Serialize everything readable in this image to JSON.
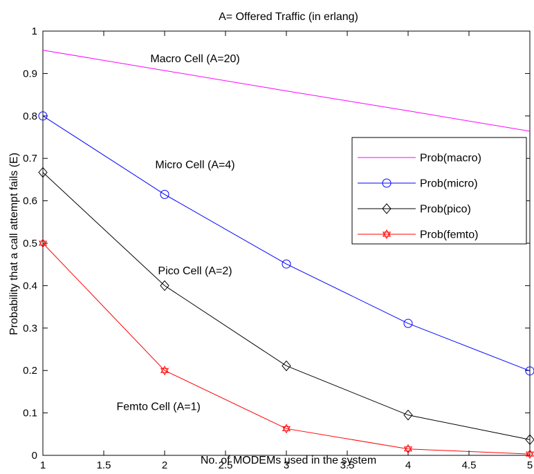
{
  "chart_data": {
    "type": "line",
    "title": "A= Offered Traffic (in erlang)",
    "xlabel": "No. of MODEMs used in the system",
    "ylabel": "Probability that a call attempt fails (E)",
    "xlim": [
      1,
      5
    ],
    "ylim": [
      0,
      1
    ],
    "xticks": [
      "1",
      "1.5",
      "2",
      "2.5",
      "3",
      "3.5",
      "4",
      "4.5",
      "5"
    ],
    "yticks": [
      "0",
      "0.1",
      "0.2",
      "0.3",
      "0.4",
      "0.5",
      "0.6",
      "0.7",
      "0.8",
      "0.9",
      "1"
    ],
    "grid": false,
    "legend_position": "right",
    "x": [
      1,
      2,
      3,
      4,
      5
    ],
    "series": [
      {
        "name": "Prob(macro)",
        "values": [
          0.955,
          0.907,
          0.859,
          0.812,
          0.764
        ],
        "color": "#ff00ff",
        "marker": "none"
      },
      {
        "name": "Prob(micro)",
        "values": [
          0.8,
          0.615,
          0.451,
          0.311,
          0.199
        ],
        "color": "#0000ff",
        "marker": "circle"
      },
      {
        "name": "Prob(pico)",
        "values": [
          0.667,
          0.4,
          0.211,
          0.095,
          0.037
        ],
        "color": "#000000",
        "marker": "diamond"
      },
      {
        "name": "Prob(femto)",
        "values": [
          0.5,
          0.2,
          0.063,
          0.015,
          0.003
        ],
        "color": "#ff0000",
        "marker": "hexagram"
      }
    ],
    "annotations": [
      {
        "text": "Macro Cell (A=20)",
        "x": 2.25,
        "y": 0.935
      },
      {
        "text": "Micro Cell (A=4)",
        "x": 2.25,
        "y": 0.685
      },
      {
        "text": "Pico Cell (A=2)",
        "x": 2.25,
        "y": 0.435
      },
      {
        "text": "Femto Cell (A=1)",
        "x": 1.95,
        "y": 0.115
      }
    ]
  }
}
